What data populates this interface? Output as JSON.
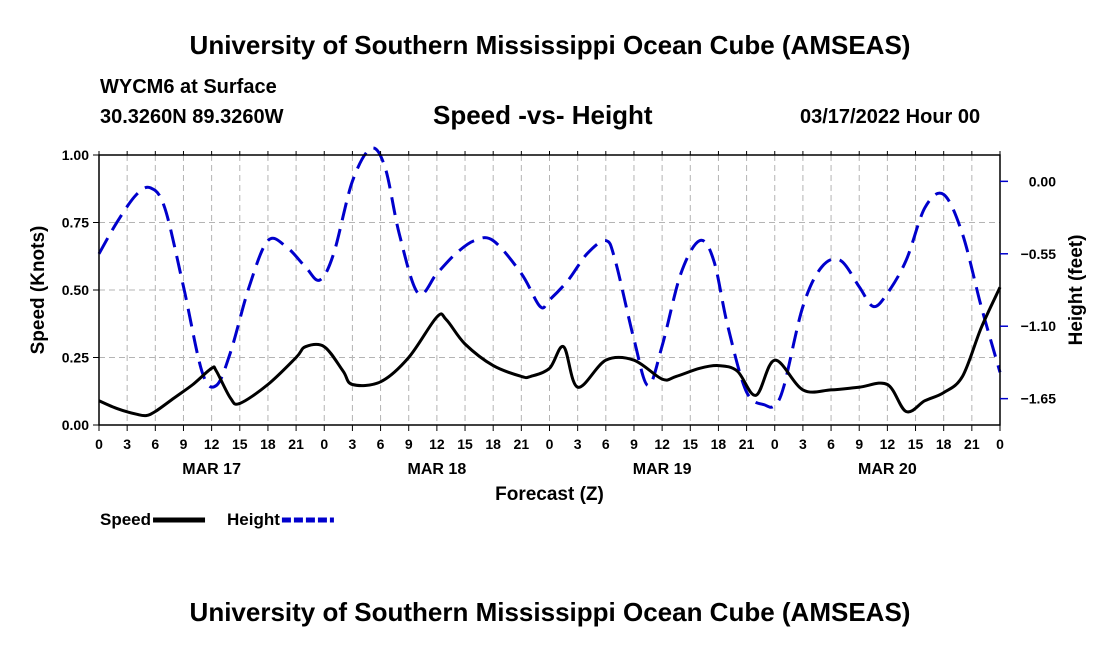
{
  "header": {
    "title": "University of Southern Mississippi Ocean Cube (AMSEAS)",
    "station": "WYCM6 at Surface",
    "coords": "30.3260N  89.3260W",
    "date": "03/17/2022 Hour 00",
    "footer_title": "University of Southern Mississippi Ocean Cube (AMSEAS)"
  },
  "chart_data": {
    "type": "line",
    "title": "Speed -vs- Height",
    "xlabel": "Forecast (Z)",
    "ylabel_left": "Speed (Knots)",
    "ylabel_right": "Height (feet)",
    "xlim": [
      0,
      96
    ],
    "ylim_left": [
      0,
      1.0
    ],
    "ylim_right": [
      -1.85,
      0.2
    ],
    "grid": true,
    "legend": "bottom-left",
    "x_ticks": [
      0,
      3,
      6,
      9,
      12,
      15,
      18,
      21,
      24,
      27,
      30,
      33,
      36,
      39,
      42,
      45,
      48,
      51,
      54,
      57,
      60,
      63,
      66,
      69,
      72,
      75,
      78,
      81,
      84,
      87,
      90,
      93,
      96
    ],
    "x_tick_labels": [
      "0",
      "3",
      "6",
      "9",
      "12",
      "15",
      "18",
      "21",
      "0",
      "3",
      "6",
      "9",
      "12",
      "15",
      "18",
      "21",
      "0",
      "3",
      "6",
      "9",
      "12",
      "15",
      "18",
      "21",
      "0",
      "3",
      "6",
      "9",
      "12",
      "15",
      "18",
      "21",
      "0"
    ],
    "date_labels": [
      {
        "x": 12,
        "label": "MAR 17"
      },
      {
        "x": 36,
        "label": "MAR 18"
      },
      {
        "x": 60,
        "label": "MAR 19"
      },
      {
        "x": 84,
        "label": "MAR 20"
      }
    ],
    "y_left_ticks": [
      0,
      0.25,
      0.5,
      0.75,
      1.0
    ],
    "y_left_tick_labels": [
      "0.00",
      "0.25",
      "0.50",
      "0.75",
      "1.00"
    ],
    "y_right_ticks": [
      0,
      -0.55,
      -1.1,
      -1.65
    ],
    "y_right_tick_labels": [
      "0.00",
      "−0.55",
      "−1.10",
      "−1.65"
    ],
    "series": [
      {
        "name": "Speed",
        "axis": "left",
        "color": "#000000",
        "dash": "solid",
        "x": [
          0,
          2,
          4,
          5,
          6,
          8,
          10,
          12,
          12.5,
          14,
          15,
          18,
          21,
          22,
          24,
          26,
          27,
          30,
          33,
          36,
          37,
          39,
          42,
          45,
          46,
          48,
          49.5,
          51,
          54,
          57,
          60,
          61.5,
          64,
          66,
          68,
          70,
          72,
          75,
          78,
          81,
          84,
          86,
          88,
          90,
          92,
          94,
          96
        ],
        "y": [
          0.09,
          0.06,
          0.04,
          0.035,
          0.05,
          0.1,
          0.15,
          0.21,
          0.2,
          0.1,
          0.08,
          0.15,
          0.25,
          0.29,
          0.29,
          0.2,
          0.15,
          0.16,
          0.25,
          0.4,
          0.39,
          0.3,
          0.22,
          0.18,
          0.18,
          0.21,
          0.29,
          0.14,
          0.24,
          0.24,
          0.17,
          0.18,
          0.21,
          0.22,
          0.2,
          0.11,
          0.24,
          0.13,
          0.13,
          0.14,
          0.15,
          0.05,
          0.09,
          0.12,
          0.18,
          0.36,
          0.51
        ]
      },
      {
        "name": "Height",
        "axis": "right",
        "color": "#0000cc",
        "dash": "dashed",
        "x": [
          0,
          2,
          4,
          5.5,
          7,
          9,
          11,
          12.5,
          14,
          16,
          18,
          20,
          22,
          23.5,
          25,
          27,
          29,
          30.5,
          32,
          34,
          36,
          38,
          40,
          42,
          45,
          47,
          48,
          50,
          52,
          54,
          55,
          57,
          58.5,
          60,
          62,
          64,
          65.5,
          67,
          69,
          71,
          72,
          73,
          75,
          77,
          79,
          81,
          82.5,
          84,
          86,
          88,
          90,
          92,
          94,
          96
        ],
        "y": [
          -0.55,
          -0.3,
          -0.1,
          -0.05,
          -0.2,
          -0.8,
          -1.45,
          -1.55,
          -1.3,
          -0.8,
          -0.45,
          -0.5,
          -0.65,
          -0.75,
          -0.55,
          0.0,
          0.25,
          0.1,
          -0.4,
          -0.85,
          -0.7,
          -0.55,
          -0.45,
          -0.45,
          -0.7,
          -0.95,
          -0.9,
          -0.75,
          -0.55,
          -0.45,
          -0.6,
          -1.2,
          -1.55,
          -1.25,
          -0.7,
          -0.45,
          -0.6,
          -1.1,
          -1.6,
          -1.7,
          -1.7,
          -1.55,
          -0.95,
          -0.65,
          -0.6,
          -0.8,
          -0.95,
          -0.85,
          -0.6,
          -0.2,
          -0.1,
          -0.4,
          -0.95,
          -1.45
        ]
      }
    ]
  }
}
